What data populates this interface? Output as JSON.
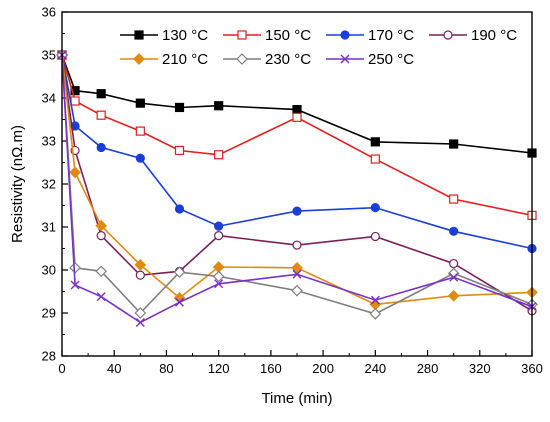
{
  "chart_data": {
    "type": "line",
    "title": "",
    "xlabel": "Time (min)",
    "ylabel": "Resistivity (nΩ.m)",
    "xlim": [
      0,
      360
    ],
    "ylim": [
      28,
      36
    ],
    "xticks": [
      0,
      40,
      80,
      120,
      160,
      200,
      240,
      280,
      320,
      360
    ],
    "yticks": [
      28,
      29,
      30,
      31,
      32,
      33,
      34,
      35,
      36
    ],
    "grid": false,
    "legend_position": "top",
    "series": [
      {
        "name": "130 °C",
        "color": "#000000",
        "marker": "square-filled",
        "x": [
          0,
          10,
          30,
          60,
          90,
          120,
          180,
          240,
          300,
          360
        ],
        "y": [
          35.0,
          34.17,
          34.1,
          33.88,
          33.78,
          33.82,
          33.73,
          32.98,
          32.93,
          32.72
        ]
      },
      {
        "name": "150 °C",
        "color": "#e02020",
        "marker": "square-open",
        "x": [
          0,
          10,
          30,
          60,
          90,
          120,
          180,
          240,
          300,
          360
        ],
        "y": [
          35.0,
          33.93,
          33.6,
          33.23,
          32.78,
          32.68,
          33.55,
          32.58,
          31.65,
          31.27
        ]
      },
      {
        "name": "170 °C",
        "color": "#1a3fd6",
        "marker": "circle-filled",
        "x": [
          0,
          10,
          30,
          60,
          90,
          120,
          180,
          240,
          300,
          360
        ],
        "y": [
          35.0,
          33.35,
          32.85,
          32.6,
          31.42,
          31.02,
          31.37,
          31.45,
          30.9,
          30.5
        ]
      },
      {
        "name": "190 °C",
        "color": "#7a1f5c",
        "marker": "circle-open",
        "x": [
          0,
          10,
          30,
          60,
          90,
          120,
          180,
          240,
          300,
          360
        ],
        "y": [
          35.0,
          32.78,
          30.8,
          29.88,
          29.97,
          30.8,
          30.58,
          30.78,
          30.15,
          29.05
        ]
      },
      {
        "name": "210 °C",
        "color": "#e08a10",
        "marker": "diamond-filled",
        "x": [
          0,
          10,
          30,
          60,
          90,
          120,
          180,
          240,
          300,
          360
        ],
        "y": [
          35.0,
          32.27,
          31.03,
          30.12,
          29.35,
          30.07,
          30.05,
          29.2,
          29.4,
          29.48
        ]
      },
      {
        "name": "230 °C",
        "color": "#7f7f7f",
        "marker": "diamond-open",
        "x": [
          0,
          10,
          30,
          60,
          90,
          120,
          180,
          240,
          300,
          360
        ],
        "y": [
          35.0,
          30.05,
          29.97,
          29.0,
          29.95,
          29.85,
          29.52,
          28.98,
          29.92,
          29.2
        ]
      },
      {
        "name": "250 °C",
        "color": "#7b2fc9",
        "marker": "x",
        "x": [
          0,
          10,
          30,
          60,
          90,
          120,
          180,
          240,
          300,
          360
        ],
        "y": [
          35.0,
          29.65,
          29.38,
          28.78,
          29.25,
          29.68,
          29.9,
          29.3,
          29.83,
          29.15
        ]
      }
    ]
  }
}
